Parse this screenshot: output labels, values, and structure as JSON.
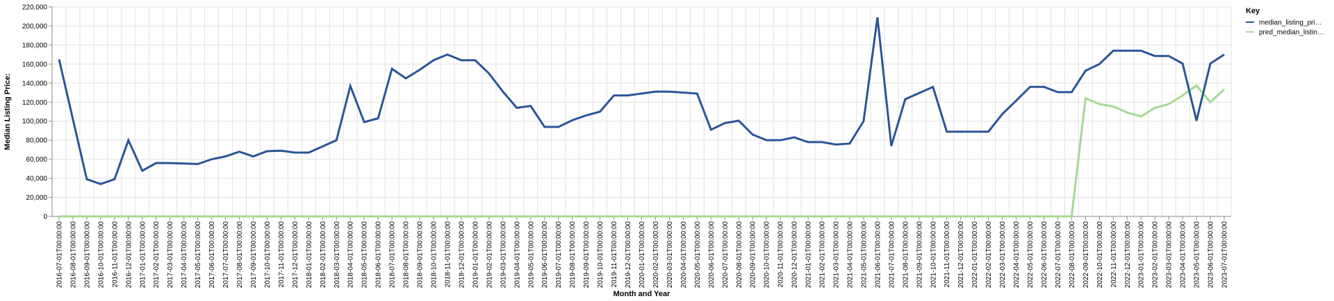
{
  "chart_data": {
    "type": "line",
    "xlabel": "Month and Year",
    "ylabel": "Median Listing Price:",
    "ylim": [
      0,
      220000
    ],
    "y_ticks": [
      "0",
      "20,000",
      "40,000",
      "60,000",
      "80,000",
      "100,000",
      "120,000",
      "140,000",
      "160,000",
      "180,000",
      "200,000",
      "220,000"
    ],
    "grid": true,
    "legend": {
      "title": "Key",
      "placement": "right",
      "items": [
        "median_listing_pri…",
        "pred_median_listin…"
      ]
    },
    "categories": [
      "2016-07-01T00:00:00",
      "2016-08-01T00:00:00",
      "2016-09-01T00:00:00",
      "2016-10-01T00:00:00",
      "2016-11-01T00:00:00",
      "2016-12-01T00:00:00",
      "2017-01-01T00:00:00",
      "2017-02-01T00:00:00",
      "2017-03-01T00:00:00",
      "2017-04-01T00:00:00",
      "2017-05-01T00:00:00",
      "2017-06-01T00:00:00",
      "2017-07-01T00:00:00",
      "2017-08-01T00:00:00",
      "2017-09-01T00:00:00",
      "2017-10-01T00:00:00",
      "2017-11-01T00:00:00",
      "2017-12-01T00:00:00",
      "2018-01-01T00:00:00",
      "2018-02-01T00:00:00",
      "2018-03-01T00:00:00",
      "2018-04-01T00:00:00",
      "2018-05-01T00:00:00",
      "2018-06-01T00:00:00",
      "2018-07-01T00:00:00",
      "2018-08-01T00:00:00",
      "2018-09-01T00:00:00",
      "2018-10-01T00:00:00",
      "2018-11-01T00:00:00",
      "2018-12-01T00:00:00",
      "2019-01-01T00:00:00",
      "2019-02-01T00:00:00",
      "2019-03-01T00:00:00",
      "2019-04-01T00:00:00",
      "2019-05-01T00:00:00",
      "2019-06-01T00:00:00",
      "2019-07-01T00:00:00",
      "2019-08-01T00:00:00",
      "2019-09-01T00:00:00",
      "2019-10-01T00:00:00",
      "2019-11-01T00:00:00",
      "2019-12-01T00:00:00",
      "2020-01-01T00:00:00",
      "2020-02-01T00:00:00",
      "2020-03-01T00:00:00",
      "2020-04-01T00:00:00",
      "2020-05-01T00:00:00",
      "2020-06-01T00:00:00",
      "2020-07-01T00:00:00",
      "2020-08-01T00:00:00",
      "2020-09-01T00:00:00",
      "2020-10-01T00:00:00",
      "2020-11-01T00:00:00",
      "2020-12-01T00:00:00",
      "2021-01-01T00:00:00",
      "2021-02-01T00:00:00",
      "2021-03-01T00:00:00",
      "2021-04-01T00:00:00",
      "2021-05-01T00:00:00",
      "2021-06-01T00:00:00",
      "2021-07-01T00:00:00",
      "2021-08-01T00:00:00",
      "2021-09-01T00:00:00",
      "2021-10-01T00:00:00",
      "2021-11-01T00:00:00",
      "2021-12-01T00:00:00",
      "2022-01-01T00:00:00",
      "2022-02-01T00:00:00",
      "2022-03-01T00:00:00",
      "2022-04-01T00:00:00",
      "2022-05-01T00:00:00",
      "2022-06-01T00:00:00",
      "2022-07-01T00:00:00",
      "2022-08-01T00:00:00",
      "2022-09-01T00:00:00",
      "2022-10-01T00:00:00",
      "2022-11-01T00:00:00",
      "2022-12-01T00:00:00",
      "2023-01-01T00:00:00",
      "2023-02-01T00:00:00",
      "2023-03-01T00:00:00",
      "2023-04-01T00:00:00",
      "2023-05-01T00:00:00",
      "2023-06-01T00:00:00",
      "2023-07-01T00:00:00"
    ],
    "series": [
      {
        "name": "median_listing_pri…",
        "color": "#2a5597",
        "values": [
          165000,
          102000,
          39000,
          34000,
          39000,
          80000,
          48000,
          56000,
          56000,
          55500,
          55000,
          60000,
          63000,
          68000,
          63000,
          68500,
          69000,
          67000,
          67000,
          73500,
          80000,
          137000,
          99000,
          103000,
          155000,
          145000,
          154000,
          164000,
          170000,
          164000,
          164000,
          150000,
          131000,
          114000,
          116000,
          94000,
          94000,
          101000,
          106000,
          110000,
          127000,
          127000,
          129000,
          131000,
          131000,
          130000,
          129000,
          91000,
          98000,
          100500,
          86000,
          80000,
          80000,
          83000,
          78000,
          78000,
          75500,
          76500,
          100000,
          209000,
          74000,
          123000,
          129500,
          136000,
          89000,
          89000,
          89000,
          89000,
          107500,
          121500,
          136000,
          136000,
          130500,
          130500,
          153000,
          160000,
          174000,
          174000,
          174000,
          168500,
          168500,
          160500,
          100500,
          160500,
          170000
        ]
      },
      {
        "name": "pred_median_listin…",
        "color": "#a4d995",
        "values": [
          0,
          0,
          0,
          0,
          0,
          0,
          0,
          0,
          0,
          0,
          0,
          0,
          0,
          0,
          0,
          0,
          0,
          0,
          0,
          0,
          0,
          0,
          0,
          0,
          0,
          0,
          0,
          0,
          0,
          0,
          0,
          0,
          0,
          0,
          0,
          0,
          0,
          0,
          0,
          0,
          0,
          0,
          0,
          0,
          0,
          0,
          0,
          0,
          0,
          0,
          0,
          0,
          0,
          0,
          0,
          0,
          0,
          0,
          0,
          0,
          0,
          0,
          0,
          0,
          0,
          0,
          0,
          0,
          0,
          0,
          0,
          0,
          0,
          0,
          124000,
          118000,
          115500,
          109000,
          105000,
          114000,
          118000,
          127000,
          137500,
          120000,
          133500
        ]
      }
    ]
  }
}
